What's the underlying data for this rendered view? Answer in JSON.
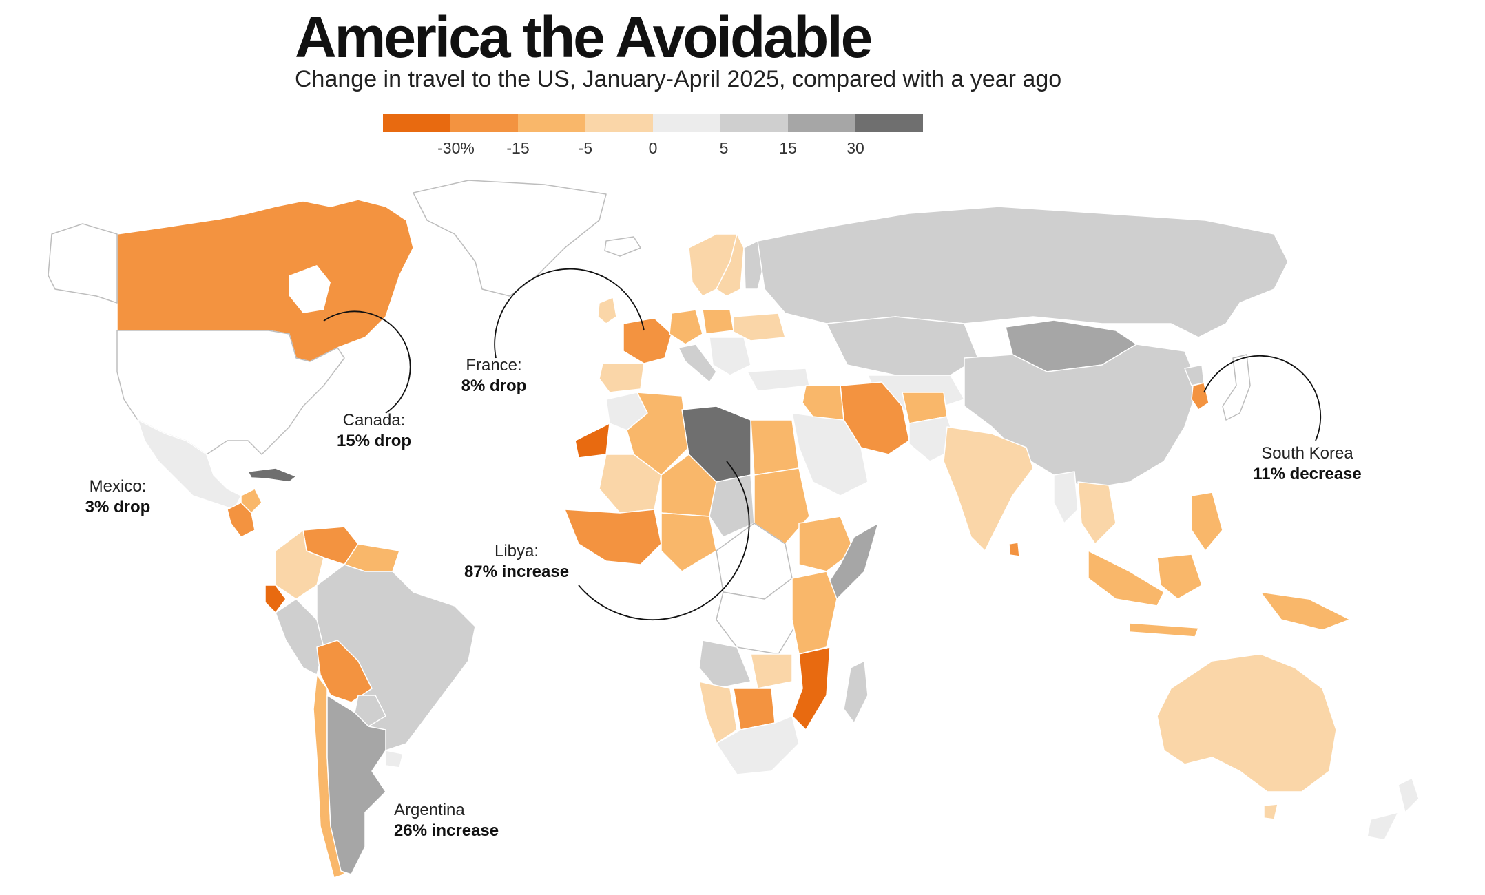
{
  "title": "America the Avoidable",
  "subtitle": "Change in travel to the US, January-April 2025, compared with a year ago",
  "legend": {
    "colors": [
      "#e86a10",
      "#f39340",
      "#f9b76a",
      "#fad6a8",
      "#ececec",
      "#cfcfcf",
      "#a6a6a6",
      "#6f6f6f"
    ],
    "ticks": [
      "-30%",
      "-15",
      "-5",
      "0",
      "5",
      "15",
      "30"
    ]
  },
  "callouts": {
    "canada": {
      "name": "Canada:",
      "value": "15% drop"
    },
    "france": {
      "name": "France:",
      "value": "8% drop"
    },
    "mexico": {
      "name": "Mexico:",
      "value": "3% drop"
    },
    "libya": {
      "name": "Libya:",
      "value": "87% increase"
    },
    "argentina": {
      "name": "Argentina",
      "value": "26% increase"
    },
    "south_korea": {
      "name": "South Korea",
      "value": "11% decrease"
    }
  },
  "colors": {
    "no_data": "#ffffff",
    "border": "#ffffff",
    "outline": "#bdbdbd"
  }
}
